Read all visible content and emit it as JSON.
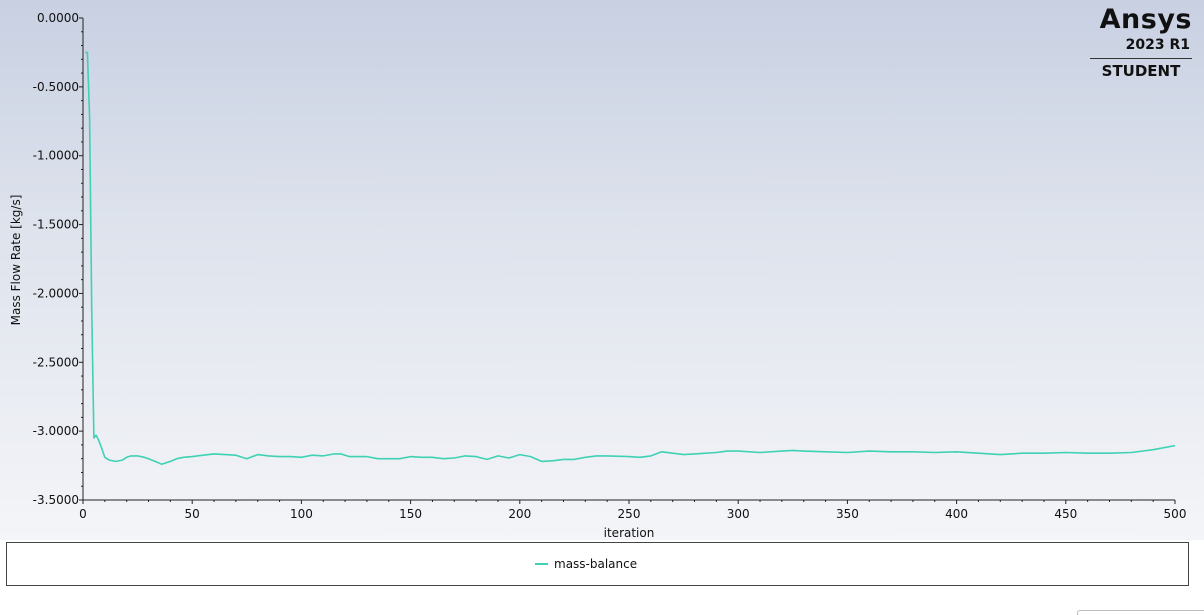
{
  "logo": {
    "brand": "Ansys",
    "version": "2023 R1",
    "edition": "STUDENT"
  },
  "colors": {
    "series": "#3fd1b4",
    "axis": "#222222"
  },
  "chart_data": {
    "type": "line",
    "title": "",
    "xlabel": "iteration",
    "ylabel": "Mass Flow Rate [kg/s]",
    "xlim": [
      0,
      500
    ],
    "ylim": [
      -3.5,
      0.0
    ],
    "x_ticks": [
      0,
      50,
      100,
      150,
      200,
      250,
      300,
      350,
      400,
      450,
      500
    ],
    "y_ticks": [
      0.0,
      -0.5,
      -1.0,
      -1.5,
      -2.0,
      -2.5,
      -3.0,
      -3.5
    ],
    "y_tick_labels": [
      "0.0000",
      "-0.5000",
      "-1.0000",
      "-1.5000",
      "-2.0000",
      "-2.5000",
      "-3.0000",
      "-3.5000"
    ],
    "legend_position": "bottom",
    "series": [
      {
        "name": "mass-balance",
        "x": [
          1,
          2,
          3,
          4,
          5,
          6,
          7,
          8,
          10,
          12,
          15,
          18,
          20,
          22,
          25,
          28,
          30,
          33,
          36,
          40,
          43,
          46,
          50,
          55,
          60,
          65,
          70,
          75,
          80,
          85,
          90,
          95,
          100,
          105,
          110,
          115,
          118,
          122,
          126,
          130,
          135,
          140,
          145,
          150,
          155,
          160,
          165,
          170,
          175,
          180,
          185,
          190,
          195,
          200,
          205,
          210,
          215,
          220,
          225,
          230,
          235,
          240,
          250,
          255,
          260,
          265,
          270,
          275,
          280,
          290,
          295,
          300,
          310,
          320,
          325,
          330,
          340,
          350,
          360,
          370,
          380,
          390,
          400,
          410,
          420,
          425,
          430,
          440,
          450,
          460,
          470,
          480,
          490,
          500
        ],
        "y": [
          -0.25,
          -0.25,
          -0.72,
          -2.1,
          -3.05,
          -3.03,
          -3.06,
          -3.1,
          -3.19,
          -3.21,
          -3.22,
          -3.21,
          -3.19,
          -3.18,
          -3.18,
          -3.19,
          -3.2,
          -3.22,
          -3.24,
          -3.22,
          -3.2,
          -3.19,
          -3.185,
          -3.175,
          -3.165,
          -3.17,
          -3.175,
          -3.2,
          -3.17,
          -3.18,
          -3.185,
          -3.185,
          -3.19,
          -3.175,
          -3.18,
          -3.165,
          -3.165,
          -3.185,
          -3.185,
          -3.185,
          -3.2,
          -3.2,
          -3.2,
          -3.185,
          -3.19,
          -3.19,
          -3.2,
          -3.195,
          -3.18,
          -3.185,
          -3.205,
          -3.18,
          -3.195,
          -3.17,
          -3.185,
          -3.22,
          -3.215,
          -3.205,
          -3.205,
          -3.19,
          -3.18,
          -3.18,
          -3.185,
          -3.19,
          -3.18,
          -3.15,
          -3.16,
          -3.17,
          -3.165,
          -3.155,
          -3.145,
          -3.145,
          -3.155,
          -3.145,
          -3.14,
          -3.145,
          -3.15,
          -3.155,
          -3.145,
          -3.15,
          -3.15,
          -3.155,
          -3.15,
          -3.16,
          -3.17,
          -3.165,
          -3.16,
          -3.16,
          -3.155,
          -3.16,
          -3.16,
          -3.155,
          -3.135,
          -3.105
        ]
      }
    ]
  }
}
